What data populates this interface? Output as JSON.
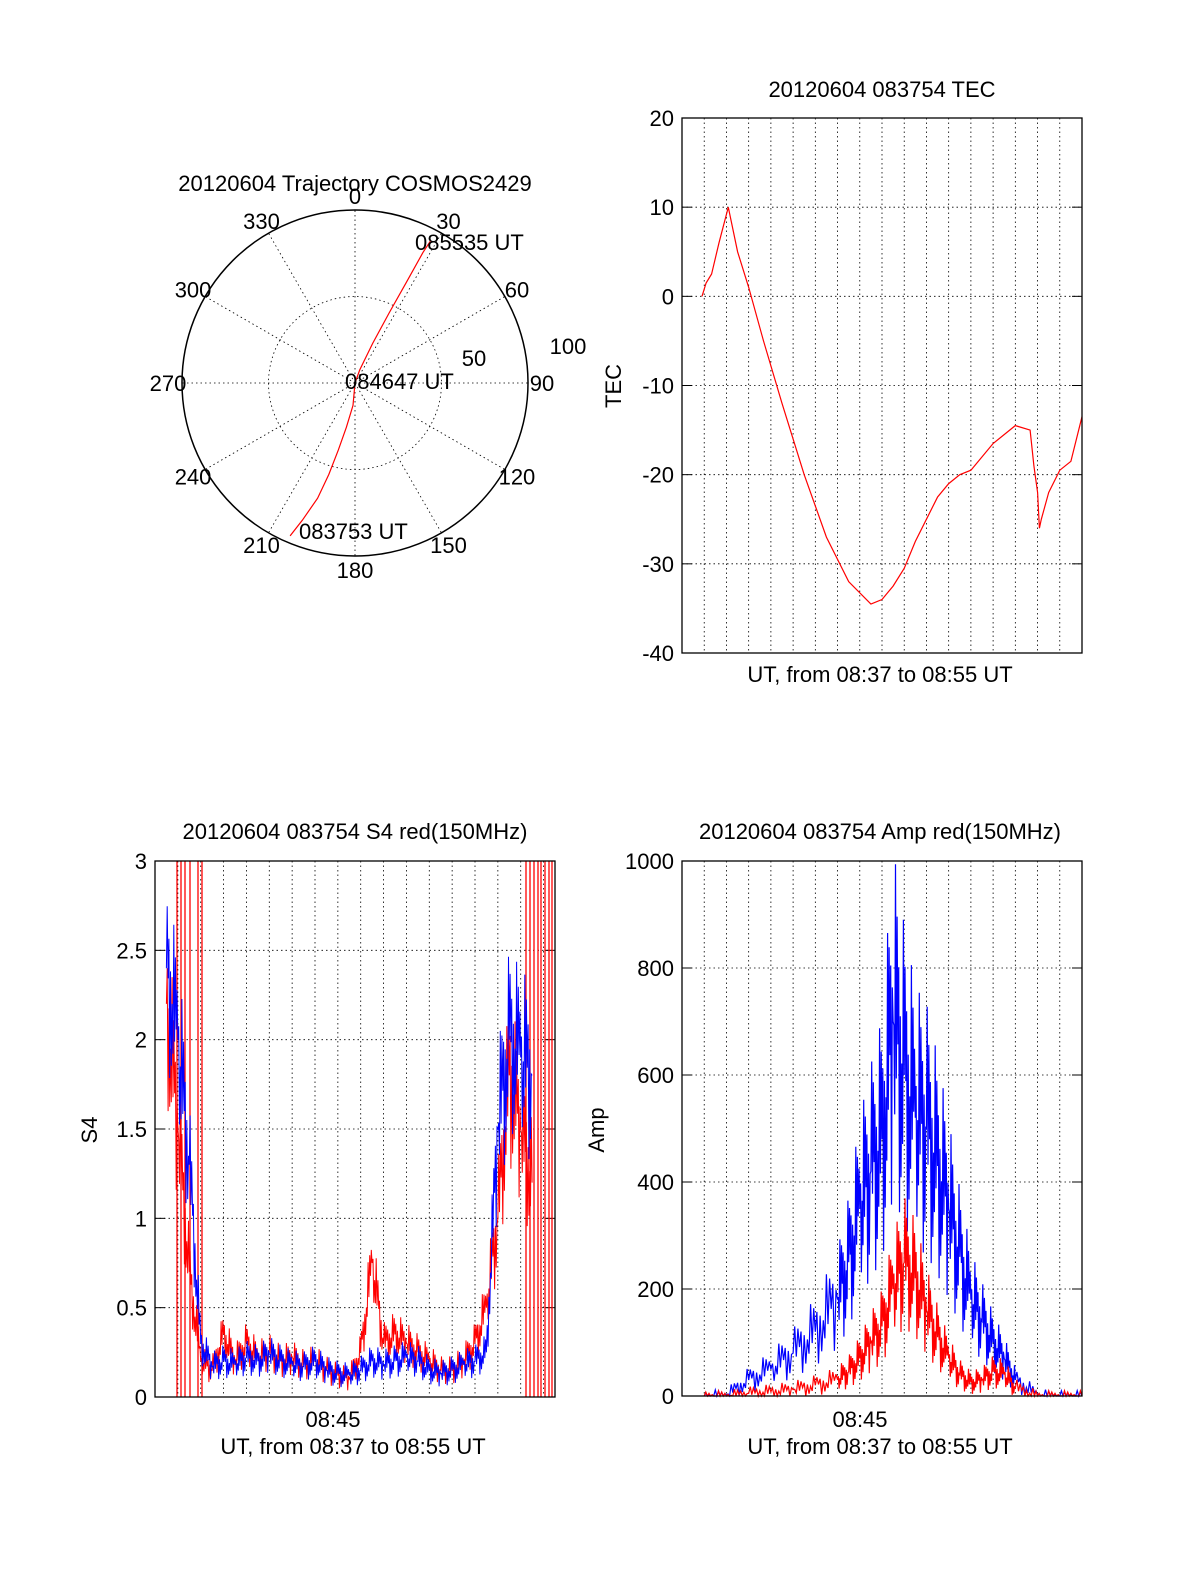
{
  "chart_data": [
    {
      "id": "trajectory",
      "type": "polar",
      "title": "20120604 Trajectory COSMOS2429",
      "azimuth_labels": [
        "0",
        "30",
        "60",
        "90",
        "120",
        "150",
        "180",
        "210",
        "240",
        "270",
        "300",
        "330"
      ],
      "radial_labels": [
        "50",
        "100"
      ],
      "radial_ticks": [
        50,
        100
      ],
      "r_max": 100,
      "annotations": [
        "085535 UT",
        "084647 UT",
        "083753 UT"
      ],
      "trajectory_color": "#ff0000",
      "trajectory": [
        {
          "az": 203,
          "r": 96
        },
        {
          "az": 201,
          "r": 85
        },
        {
          "az": 198,
          "r": 70
        },
        {
          "az": 196,
          "r": 55
        },
        {
          "az": 194,
          "r": 40
        },
        {
          "az": 191,
          "r": 26
        },
        {
          "az": 185,
          "r": 13
        },
        {
          "az": 0,
          "r": 0
        },
        {
          "az": 20,
          "r": 8
        },
        {
          "az": 24,
          "r": 25
        },
        {
          "az": 26,
          "r": 45
        },
        {
          "az": 27,
          "r": 65
        },
        {
          "az": 27.5,
          "r": 85
        },
        {
          "az": 28,
          "r": 93
        }
      ]
    },
    {
      "id": "tec",
      "type": "line",
      "title": "20120604 083754 TEC",
      "xlabel": "UT, from 08:37 to 08:55 UT",
      "ylabel": "TEC",
      "xlim": [
        "08:37",
        "08:55"
      ],
      "ylim": [
        -40,
        20
      ],
      "yticks": [
        "-40",
        "-30",
        "-20",
        "-10",
        "0",
        "10",
        "20"
      ],
      "series": [
        {
          "color": "#ff0000",
          "x": [
            "08:37:54",
            "08:38:05",
            "08:38:20",
            "08:38:40",
            "08:39:05",
            "08:39:30",
            "08:40:00",
            "08:40:40",
            "08:41:30",
            "08:42:30",
            "08:43:30",
            "08:44:30",
            "08:45:30",
            "08:46:00",
            "08:46:30",
            "08:47:00",
            "08:47:30",
            "08:48:00",
            "08:48:30",
            "08:49:00",
            "08:49:30",
            "08:50:00",
            "08:51:00",
            "08:52:00",
            "08:52:40",
            "08:52:50",
            "08:53:00",
            "08:53:05",
            "08:53:10",
            "08:53:30",
            "08:54:00",
            "08:54:30",
            "08:55:00"
          ],
          "y": [
            0,
            1.5,
            2.5,
            6,
            10,
            5,
            1,
            -5,
            -12,
            -20,
            -27,
            -32,
            -34.5,
            -34,
            -32.5,
            -30.5,
            -27.5,
            -25,
            -22.5,
            -21,
            -20,
            -19.5,
            -16.5,
            -14.5,
            -15,
            -19,
            -22,
            -26,
            -25,
            -22,
            -19.5,
            -18.5,
            -13.5
          ]
        }
      ]
    },
    {
      "id": "s4",
      "type": "line",
      "title": "20120604 083754 S4 red(150MHz)",
      "xlabel": "UT, from 08:37 to 08:55 UT",
      "ylabel": "S4",
      "xtick_labels": [
        "08:45"
      ],
      "ylim": [
        0,
        3
      ],
      "yticks": [
        "0",
        "0.5",
        "1",
        "1.5",
        "2",
        "2.5",
        "3"
      ],
      "series": [
        {
          "color": "#ff0000",
          "x": [
            "08:38:00",
            "08:38:30",
            "08:39:00",
            "08:39:30",
            "08:40:00",
            "08:40:30",
            "08:41:00",
            "08:41:30",
            "08:42:00",
            "08:42:30",
            "08:43:00",
            "08:43:30",
            "08:44:00",
            "08:44:30",
            "08:45:00",
            "08:45:30",
            "08:46:00",
            "08:46:30",
            "08:47:00",
            "08:47:30",
            "08:48:00",
            "08:48:30",
            "08:49:00",
            "08:49:30",
            "08:50:00",
            "08:50:30",
            "08:51:00",
            "08:51:30",
            "08:52:00",
            "08:52:30",
            "08:53:00",
            "08:53:30",
            "08:54:00"
          ],
          "y": [
            2.2,
            1.5,
            0.7,
            0.2,
            0.15,
            0.35,
            0.2,
            0.3,
            0.22,
            0.25,
            0.2,
            0.22,
            0.18,
            0.2,
            0.15,
            0.12,
            0.1,
            0.25,
            0.75,
            0.3,
            0.35,
            0.3,
            0.25,
            0.2,
            0.15,
            0.15,
            0.2,
            0.3,
            0.5,
            1.0,
            1.8,
            1.5,
            1.2
          ]
        },
        {
          "color": "#0000ff",
          "x": [
            "08:38:00",
            "08:38:30",
            "08:39:00",
            "08:39:30",
            "08:40:00",
            "08:40:30",
            "08:41:00",
            "08:41:30",
            "08:42:00",
            "08:42:30",
            "08:43:00",
            "08:43:30",
            "08:44:00",
            "08:44:30",
            "08:45:00",
            "08:45:30",
            "08:46:00",
            "08:46:30",
            "08:47:00",
            "08:47:30",
            "08:48:00",
            "08:48:30",
            "08:49:00",
            "08:49:30",
            "08:50:00",
            "08:50:30",
            "08:51:00",
            "08:51:30",
            "08:52:00",
            "08:52:30",
            "08:53:00",
            "08:53:30",
            "08:54:00"
          ],
          "y": [
            2.4,
            2.0,
            1.3,
            0.3,
            0.17,
            0.2,
            0.18,
            0.22,
            0.2,
            0.24,
            0.2,
            0.18,
            0.17,
            0.2,
            0.15,
            0.13,
            0.12,
            0.15,
            0.2,
            0.18,
            0.2,
            0.22,
            0.2,
            0.15,
            0.13,
            0.15,
            0.18,
            0.2,
            0.25,
            1.5,
            2.0,
            1.9,
            1.8
          ]
        }
      ]
    },
    {
      "id": "amp",
      "type": "line",
      "title": "20120604 083754 Amp red(150MHz)",
      "xlabel": "UT, from 08:37 to 08:55 UT",
      "ylabel": "Amp",
      "xtick_labels": [
        "08:45"
      ],
      "ylim": [
        0,
        1000
      ],
      "yticks": [
        "0",
        "200",
        "400",
        "600",
        "800",
        "1000"
      ],
      "series": [
        {
          "color": "#0000ff",
          "x": [
            "08:38:00",
            "08:39:00",
            "08:40:00",
            "08:41:00",
            "08:42:00",
            "08:43:00",
            "08:44:00",
            "08:44:30",
            "08:45:00",
            "08:45:30",
            "08:46:00",
            "08:46:30",
            "08:47:00",
            "08:47:30",
            "08:48:00",
            "08:48:30",
            "08:49:00",
            "08:49:30",
            "08:50:00",
            "08:50:30",
            "08:51:00",
            "08:51:30",
            "08:52:00",
            "08:53:00",
            "08:54:00",
            "08:55:00"
          ],
          "y": [
            0,
            2,
            30,
            50,
            80,
            120,
            180,
            250,
            350,
            420,
            480,
            700,
            600,
            520,
            500,
            430,
            350,
            260,
            180,
            140,
            100,
            70,
            30,
            2,
            0,
            0
          ]
        },
        {
          "color": "#ff0000",
          "x": [
            "08:38:00",
            "08:39:00",
            "08:40:00",
            "08:41:00",
            "08:42:00",
            "08:43:00",
            "08:44:00",
            "08:44:30",
            "08:45:00",
            "08:45:30",
            "08:46:00",
            "08:46:30",
            "08:47:00",
            "08:47:30",
            "08:48:00",
            "08:48:30",
            "08:49:00",
            "08:49:30",
            "08:50:00",
            "08:50:30",
            "08:51:00",
            "08:51:30",
            "08:52:00",
            "08:53:00",
            "08:54:00",
            "08:55:00"
          ],
          "y": [
            0,
            0,
            5,
            8,
            12,
            20,
            30,
            45,
            70,
            100,
            130,
            200,
            250,
            220,
            160,
            110,
            70,
            40,
            25,
            30,
            45,
            40,
            15,
            0,
            0,
            0
          ]
        }
      ]
    }
  ]
}
